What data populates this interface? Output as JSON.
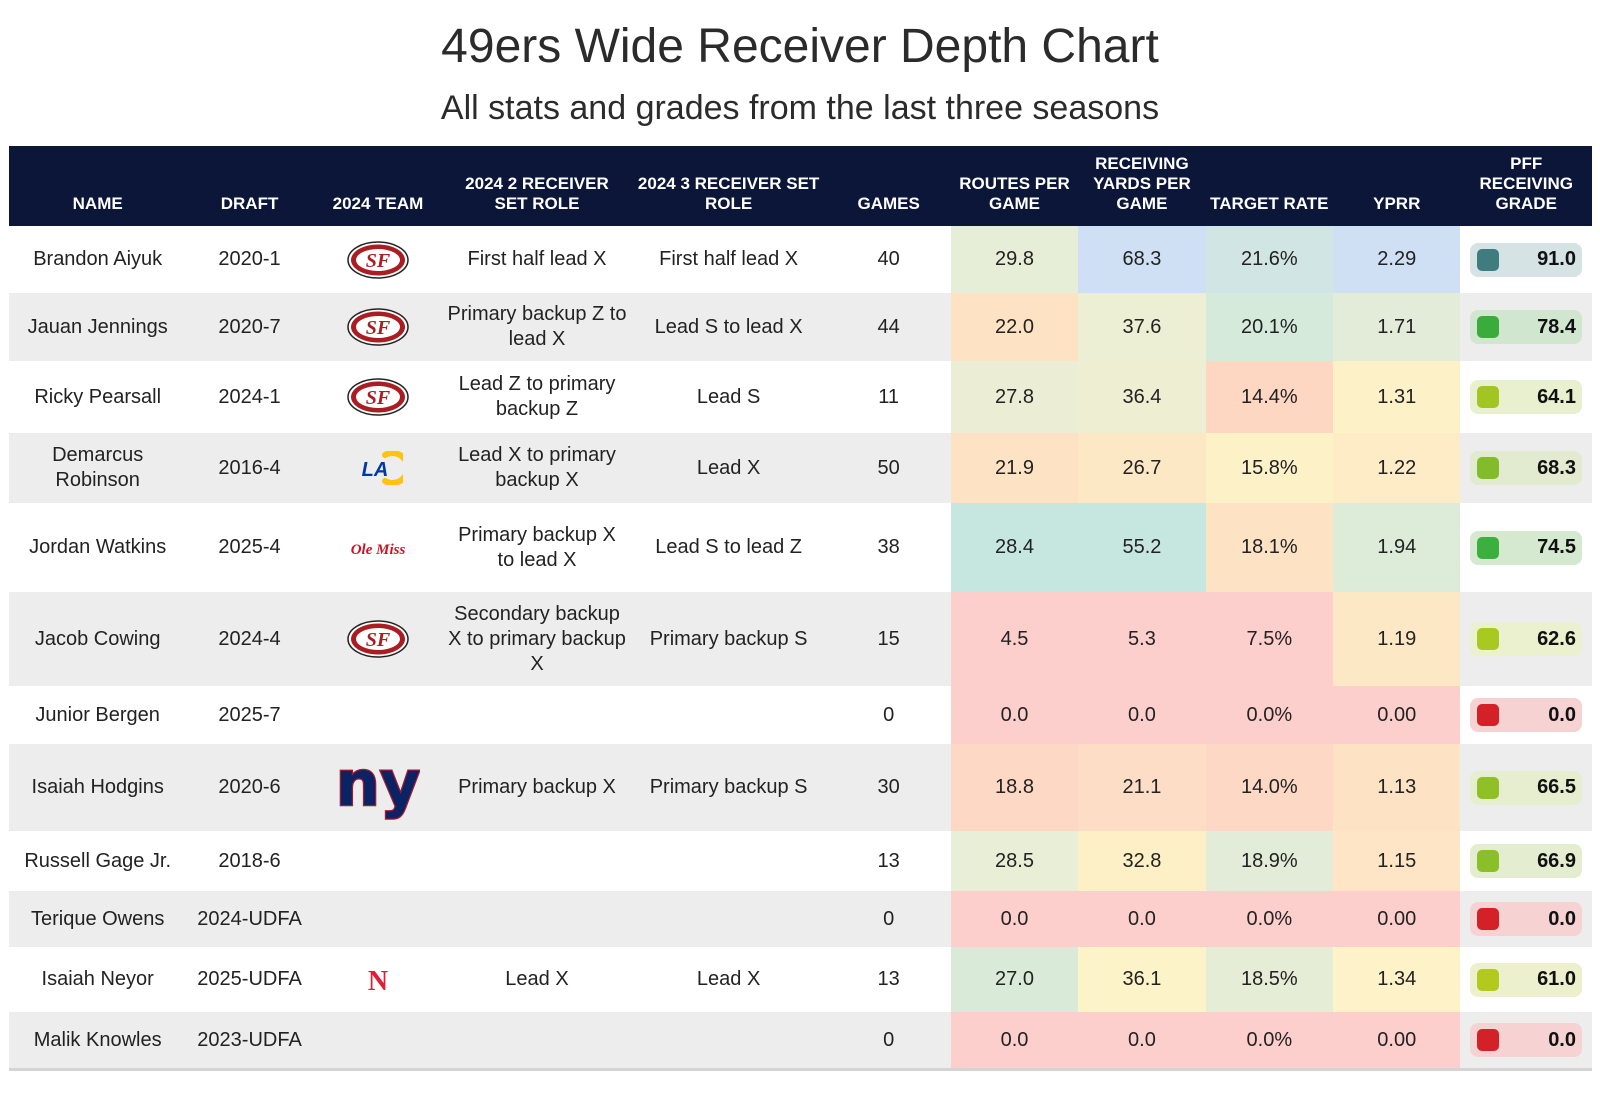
{
  "title": "49ers Wide Receiver Depth Chart",
  "subtitle": "All stats and grades from the last three seasons",
  "columns": [
    "NAME",
    "DRAFT",
    "2024 TEAM",
    "2024 2 RECEIVER SET ROLE",
    "2024 3 RECEIVER SET ROLE",
    "GAMES",
    "ROUTES PER GAME",
    "RECEIVING YARDS PER GAME",
    "TARGET RATE",
    "YPRR",
    "PFF RECEIVING GRADE"
  ],
  "team_logos": {
    "49ers": {
      "icon": "49ers-logo-icon",
      "text": "SF"
    },
    "rams": {
      "icon": "rams-logo-icon",
      "text": "LA"
    },
    "olemiss": {
      "icon": "ole-miss-logo-icon",
      "text": "Ole Miss"
    },
    "giants": {
      "icon": "giants-logo-icon",
      "text": "ny"
    },
    "nebraska": {
      "icon": "nebraska-logo-icon",
      "text": "N"
    }
  },
  "chart_data": {
    "type": "table",
    "title": "49ers Wide Receiver Depth Chart",
    "subtitle": "All stats and grades from the last three seasons",
    "rows": [
      {
        "name": "Brandon Aiyuk",
        "draft": "2020-1",
        "team": "49ers",
        "role2": "First half lead X",
        "role3": "First half lead X",
        "games": "40",
        "routes": {
          "v": "29.8",
          "c": "#e6eed8"
        },
        "yards": {
          "v": "68.3",
          "c": "#cfdff4"
        },
        "target": {
          "v": "21.6%",
          "c": "#d2e5e5"
        },
        "yprr": {
          "v": "2.29",
          "c": "#cfdff4"
        },
        "grade": {
          "v": "91.0",
          "bg": "#d5e3e5",
          "sw": "#3f7c80"
        }
      },
      {
        "name": "Jauan Jennings",
        "draft": "2020-7",
        "team": "49ers",
        "role2": "Primary backup Z to lead X",
        "role3": "Lead S to lead X",
        "games": "44",
        "routes": {
          "v": "22.0",
          "c": "#fde3c4"
        },
        "yards": {
          "v": "37.6",
          "c": "#ecefd3"
        },
        "target": {
          "v": "20.1%",
          "c": "#d5eadb"
        },
        "yprr": {
          "v": "1.71",
          "c": "#e2ecd8"
        },
        "grade": {
          "v": "78.4",
          "bg": "#d0e6cf",
          "sw": "#3bab3c"
        }
      },
      {
        "name": "Ricky Pearsall",
        "draft": "2024-1",
        "team": "49ers",
        "role2": "Lead Z to primary backup Z",
        "role3": "Lead S",
        "games": "11",
        "routes": {
          "v": "27.8",
          "c": "#ecedd5"
        },
        "yards": {
          "v": "36.4",
          "c": "#eeefd2"
        },
        "target": {
          "v": "14.4%",
          "c": "#fdd7c2"
        },
        "yprr": {
          "v": "1.31",
          "c": "#fdf1c8"
        },
        "grade": {
          "v": "64.1",
          "bg": "#e9f0cf",
          "sw": "#a3c521"
        }
      },
      {
        "name": "Demarcus Robinson",
        "draft": "2016-4",
        "team": "rams",
        "role2": "Lead X to primary backup X",
        "role3": "Lead X",
        "games": "50",
        "routes": {
          "v": "21.9",
          "c": "#fde3c4"
        },
        "yards": {
          "v": "26.7",
          "c": "#fde8c6"
        },
        "target": {
          "v": "15.8%",
          "c": "#fdf1c8"
        },
        "yprr": {
          "v": "1.22",
          "c": "#fdecc6"
        },
        "grade": {
          "v": "68.3",
          "bg": "#e2ebd0",
          "sw": "#82bc2b"
        }
      },
      {
        "name": "Jordan Watkins",
        "draft": "2025-4",
        "team": "olemiss",
        "role2": "Primary backup X to lead X",
        "role3": "Lead S to lead Z",
        "games": "38",
        "routes": {
          "v": "28.4",
          "c": "#c6e7df"
        },
        "yards": {
          "v": "55.2",
          "c": "#c6e7df"
        },
        "target": {
          "v": "18.1%",
          "c": "#fde3c4"
        },
        "yprr": {
          "v": "1.94",
          "c": "#dcecd9"
        },
        "grade": {
          "v": "74.5",
          "bg": "#d5e9d0",
          "sw": "#3cb03e"
        }
      },
      {
        "name": "Jacob Cowing",
        "draft": "2024-4",
        "team": "49ers",
        "role2": "Secondary backup X to primary backup X",
        "role3": "Primary backup S",
        "games": "15",
        "routes": {
          "v": "4.5",
          "c": "#fdcfcc"
        },
        "yards": {
          "v": "5.3",
          "c": "#fdcfcc"
        },
        "target": {
          "v": "7.5%",
          "c": "#fdcfcc"
        },
        "yprr": {
          "v": "1.19",
          "c": "#fde8c6"
        },
        "grade": {
          "v": "62.6",
          "bg": "#ebf0ce",
          "sw": "#a9c820"
        }
      },
      {
        "name": "Junior Bergen",
        "draft": "2025-7",
        "team": "",
        "role2": "",
        "role3": "",
        "games": "0",
        "routes": {
          "v": "0.0",
          "c": "#fdcfcc"
        },
        "yards": {
          "v": "0.0",
          "c": "#fdcfcc"
        },
        "target": {
          "v": "0.0%",
          "c": "#fdcfcc"
        },
        "yprr": {
          "v": "0.00",
          "c": "#fdcfcc"
        },
        "grade": {
          "v": "0.0",
          "bg": "#f6d2d2",
          "sw": "#d42027"
        }
      },
      {
        "name": "Isaiah Hodgins",
        "draft": "2020-6",
        "team": "giants",
        "role2": "Primary backup X",
        "role3": "Primary backup S",
        "games": "30",
        "routes": {
          "v": "18.8",
          "c": "#fdd8c4"
        },
        "yards": {
          "v": "21.1",
          "c": "#fdddc5"
        },
        "target": {
          "v": "14.0%",
          "c": "#fdd8c4"
        },
        "yprr": {
          "v": "1.13",
          "c": "#fde3c4"
        },
        "grade": {
          "v": "66.5",
          "bg": "#e6eecf",
          "sw": "#8fc026"
        }
      },
      {
        "name": "Russell Gage Jr.",
        "draft": "2018-6",
        "team": "",
        "role2": "",
        "role3": "",
        "games": "13",
        "routes": {
          "v": "28.5",
          "c": "#e9efd6"
        },
        "yards": {
          "v": "32.8",
          "c": "#fdf0c7"
        },
        "target": {
          "v": "18.9%",
          "c": "#e3ecd8"
        },
        "yprr": {
          "v": "1.15",
          "c": "#fde5c5"
        },
        "grade": {
          "v": "66.9",
          "bg": "#e4edcf",
          "sw": "#8abf28"
        }
      },
      {
        "name": "Terique Owens",
        "draft": "2024-UDFA",
        "team": "",
        "role2": "",
        "role3": "",
        "games": "0",
        "routes": {
          "v": "0.0",
          "c": "#fdcfcc"
        },
        "yards": {
          "v": "0.0",
          "c": "#fdcfcc"
        },
        "target": {
          "v": "0.0%",
          "c": "#fdcfcc"
        },
        "yprr": {
          "v": "0.00",
          "c": "#fdcfcc"
        },
        "grade": {
          "v": "0.0",
          "bg": "#f6d2d2",
          "sw": "#d42027"
        }
      },
      {
        "name": "Isaiah Neyor",
        "draft": "2025-UDFA",
        "team": "nebraska",
        "role2": "Lead X",
        "role3": "Lead X",
        "games": "13",
        "routes": {
          "v": "27.0",
          "c": "#d9ead9"
        },
        "yards": {
          "v": "36.1",
          "c": "#fdf3c8"
        },
        "target": {
          "v": "18.5%",
          "c": "#e5edd6"
        },
        "yprr": {
          "v": "1.34",
          "c": "#fdf2c8"
        },
        "grade": {
          "v": "61.0",
          "bg": "#edf0cd",
          "sw": "#b4c91e"
        }
      },
      {
        "name": "Malik Knowles",
        "draft": "2023-UDFA",
        "team": "",
        "role2": "",
        "role3": "",
        "games": "0",
        "routes": {
          "v": "0.0",
          "c": "#fdcfcc"
        },
        "yards": {
          "v": "0.0",
          "c": "#fdcfcc"
        },
        "target": {
          "v": "0.0%",
          "c": "#fdcfcc"
        },
        "yprr": {
          "v": "0.00",
          "c": "#fdcfcc"
        },
        "grade": {
          "v": "0.0",
          "bg": "#f6d2d2",
          "sw": "#d42027"
        }
      }
    ]
  }
}
